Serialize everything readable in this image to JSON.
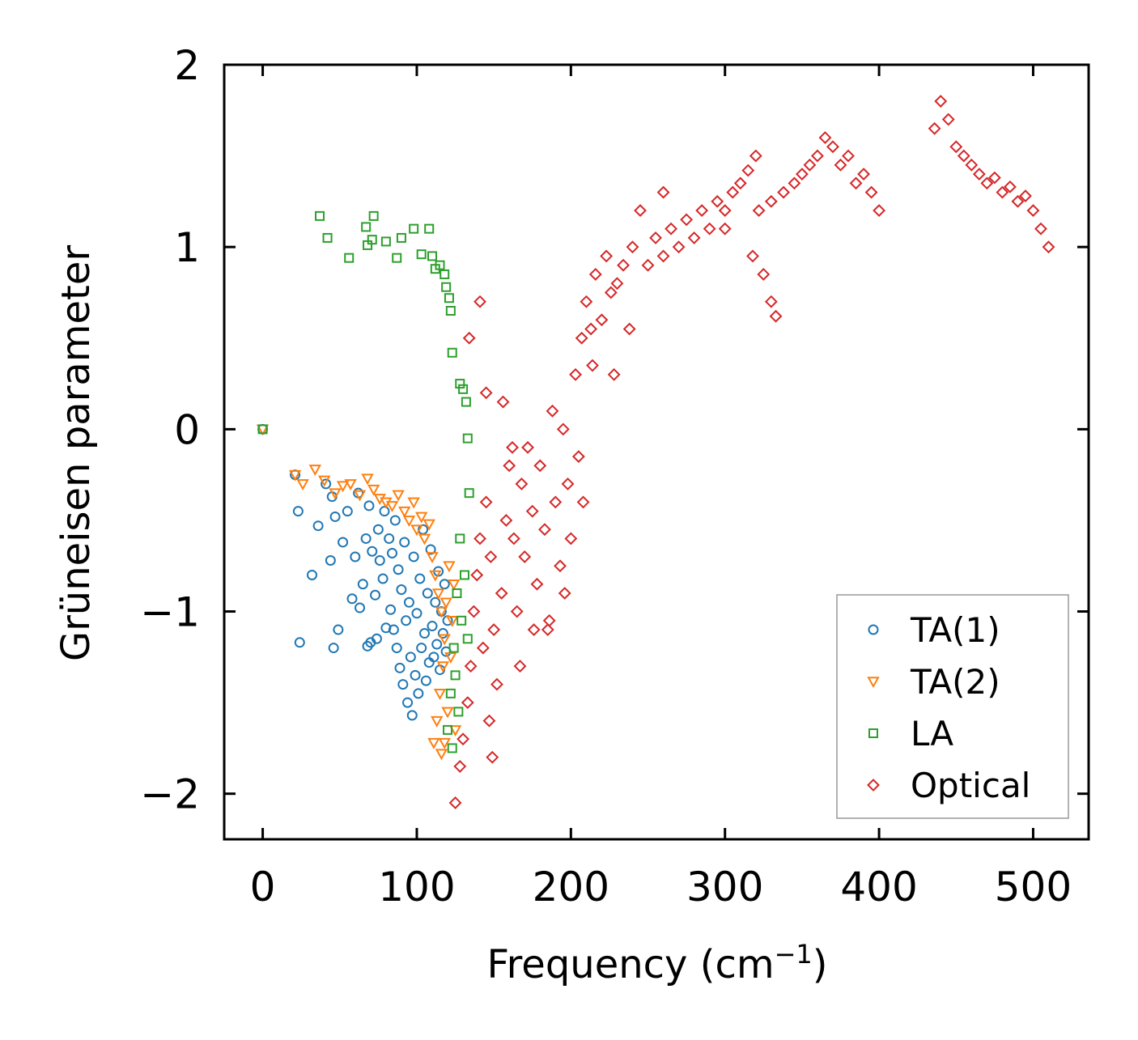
{
  "chart_data": {
    "type": "scatter",
    "title": "",
    "xlabel_main": "Frequency (cm",
    "xlabel_sup": "−1",
    "xlabel_close": ")",
    "ylabel": "Grüneisen parameter",
    "xlim": [
      -25,
      536
    ],
    "ylim": [
      -2.25,
      2.0
    ],
    "xticks": [
      0,
      100,
      200,
      300,
      400,
      500
    ],
    "xtick_labels": [
      "0",
      "100",
      "200",
      "300",
      "400",
      "500"
    ],
    "yticks": [
      -2,
      -1,
      0,
      1,
      2
    ],
    "ytick_labels": [
      "−2",
      "−1",
      "0",
      "1",
      "2"
    ],
    "grid": false,
    "legend_position": "lower-right",
    "series": [
      {
        "name": "TA(1)",
        "marker": "circle",
        "color": "#1f77b4",
        "points": [
          [
            0,
            0
          ],
          [
            23,
            -0.45
          ],
          [
            21,
            -0.25
          ],
          [
            24,
            -1.17
          ],
          [
            32,
            -0.8
          ],
          [
            36,
            -0.53
          ],
          [
            41,
            -0.3
          ],
          [
            44,
            -0.72
          ],
          [
            45,
            -0.37
          ],
          [
            46,
            -1.2
          ],
          [
            47,
            -0.48
          ],
          [
            49,
            -1.1
          ],
          [
            52,
            -0.62
          ],
          [
            55,
            -0.45
          ],
          [
            58,
            -0.93
          ],
          [
            60,
            -0.7
          ],
          [
            62,
            -0.35
          ],
          [
            63,
            -0.98
          ],
          [
            65,
            -0.85
          ],
          [
            67,
            -0.6
          ],
          [
            68,
            -1.19
          ],
          [
            69,
            -0.42
          ],
          [
            70,
            -1.17
          ],
          [
            71,
            -0.67
          ],
          [
            73,
            -0.91
          ],
          [
            74,
            -1.15
          ],
          [
            75,
            -0.55
          ],
          [
            76,
            -0.72
          ],
          [
            78,
            -0.82
          ],
          [
            79,
            -0.45
          ],
          [
            80,
            -1.09
          ],
          [
            82,
            -0.6
          ],
          [
            83,
            -0.99
          ],
          [
            84,
            -0.68
          ],
          [
            85,
            -1.1
          ],
          [
            86,
            -0.5
          ],
          [
            87,
            -1.2
          ],
          [
            88,
            -0.77
          ],
          [
            89,
            -1.31
          ],
          [
            90,
            -0.88
          ],
          [
            91,
            -1.4
          ],
          [
            92,
            -0.62
          ],
          [
            93,
            -1.05
          ],
          [
            94,
            -1.5
          ],
          [
            95,
            -0.95
          ],
          [
            96,
            -1.25
          ],
          [
            97,
            -1.57
          ],
          [
            98,
            -0.7
          ],
          [
            99,
            -1.35
          ],
          [
            100,
            -1.01
          ],
          [
            101,
            -1.45
          ],
          [
            102,
            -0.82
          ],
          [
            103,
            -1.2
          ],
          [
            104,
            -0.55
          ],
          [
            105,
            -1.12
          ],
          [
            106,
            -1.38
          ],
          [
            107,
            -0.9
          ],
          [
            108,
            -1.28
          ],
          [
            109,
            -0.66
          ],
          [
            110,
            -1.08
          ],
          [
            111,
            -1.25
          ],
          [
            112,
            -0.95
          ],
          [
            113,
            -1.18
          ],
          [
            114,
            -0.78
          ],
          [
            115,
            -1.32
          ],
          [
            116,
            -1.0
          ],
          [
            117,
            -1.12
          ],
          [
            118,
            -0.85
          ],
          [
            119,
            -1.22
          ],
          [
            120,
            -1.05
          ]
        ]
      },
      {
        "name": "TA(2)",
        "marker": "triangle-down",
        "color": "#ff7f0e",
        "points": [
          [
            0,
            0
          ],
          [
            21,
            -0.25
          ],
          [
            26,
            -0.3
          ],
          [
            34,
            -0.22
          ],
          [
            40,
            -0.28
          ],
          [
            47,
            -0.35
          ],
          [
            52,
            -0.31
          ],
          [
            57,
            -0.3
          ],
          [
            63,
            -0.36
          ],
          [
            68,
            -0.27
          ],
          [
            72,
            -0.33
          ],
          [
            76,
            -0.38
          ],
          [
            80,
            -0.4
          ],
          [
            84,
            -0.42
          ],
          [
            88,
            -0.36
          ],
          [
            92,
            -0.45
          ],
          [
            95,
            -0.5
          ],
          [
            98,
            -0.4
          ],
          [
            100,
            -0.55
          ],
          [
            103,
            -0.48
          ],
          [
            105,
            -0.6
          ],
          [
            108,
            -0.52
          ],
          [
            110,
            -0.7
          ],
          [
            111,
            -1.72
          ],
          [
            112,
            -0.8
          ],
          [
            113,
            -1.6
          ],
          [
            114,
            -0.9
          ],
          [
            115,
            -1.45
          ],
          [
            116,
            -1.0
          ],
          [
            117,
            -1.3
          ],
          [
            118,
            -1.15
          ],
          [
            119,
            -0.95
          ],
          [
            120,
            -1.55
          ],
          [
            121,
            -0.75
          ],
          [
            122,
            -1.25
          ],
          [
            123,
            -1.05
          ],
          [
            124,
            -0.85
          ],
          [
            125,
            -1.65
          ],
          [
            118,
            -1.72
          ],
          [
            116,
            -1.78
          ]
        ]
      },
      {
        "name": "LA",
        "marker": "square",
        "color": "#2ca02c",
        "points": [
          [
            0,
            0
          ],
          [
            37,
            1.17
          ],
          [
            42,
            1.05
          ],
          [
            56,
            0.94
          ],
          [
            67,
            1.11
          ],
          [
            68,
            1.01
          ],
          [
            72,
            1.17
          ],
          [
            71,
            1.04
          ],
          [
            80,
            1.03
          ],
          [
            87,
            0.94
          ],
          [
            90,
            1.05
          ],
          [
            98,
            1.1
          ],
          [
            103,
            0.96
          ],
          [
            108,
            1.1
          ],
          [
            110,
            0.95
          ],
          [
            112,
            0.88
          ],
          [
            115,
            0.9
          ],
          [
            118,
            0.85
          ],
          [
            119,
            0.78
          ],
          [
            121,
            0.72
          ],
          [
            122,
            0.65
          ],
          [
            123,
            0.42
          ],
          [
            128,
            0.25
          ],
          [
            130,
            0.22
          ],
          [
            132,
            0.15
          ],
          [
            133,
            -0.05
          ],
          [
            134,
            -0.35
          ],
          [
            128,
            -0.6
          ],
          [
            126,
            -0.9
          ],
          [
            124,
            -1.2
          ],
          [
            122,
            -1.45
          ],
          [
            120,
            -1.65
          ],
          [
            125,
            -1.35
          ],
          [
            129,
            -1.05
          ],
          [
            131,
            -0.8
          ],
          [
            133,
            -1.15
          ],
          [
            127,
            -1.55
          ],
          [
            123,
            -1.75
          ]
        ]
      },
      {
        "name": "Optical",
        "marker": "diamond",
        "color": "#d62728",
        "points": [
          [
            125,
            -2.05
          ],
          [
            128,
            -1.85
          ],
          [
            130,
            -1.7
          ],
          [
            133,
            -1.5
          ],
          [
            135,
            -1.3
          ],
          [
            137,
            -1.0
          ],
          [
            139,
            -0.8
          ],
          [
            141,
            -0.6
          ],
          [
            145,
            -0.4
          ],
          [
            148,
            -0.7
          ],
          [
            150,
            -1.1
          ],
          [
            152,
            -1.4
          ],
          [
            155,
            -0.9
          ],
          [
            158,
            -0.5
          ],
          [
            160,
            -0.2
          ],
          [
            163,
            -0.6
          ],
          [
            165,
            -1.0
          ],
          [
            168,
            -0.3
          ],
          [
            170,
            -0.7
          ],
          [
            172,
            -0.1
          ],
          [
            175,
            -0.45
          ],
          [
            178,
            -0.85
          ],
          [
            180,
            -0.2
          ],
          [
            183,
            -0.55
          ],
          [
            185,
            -1.1
          ],
          [
            188,
            0.1
          ],
          [
            190,
            -0.4
          ],
          [
            193,
            -0.75
          ],
          [
            195,
            0.0
          ],
          [
            198,
            -0.3
          ],
          [
            200,
            -0.6
          ],
          [
            203,
            0.3
          ],
          [
            205,
            -0.15
          ],
          [
            207,
            0.5
          ],
          [
            210,
            0.7
          ],
          [
            213,
            0.55
          ],
          [
            216,
            0.85
          ],
          [
            220,
            0.6
          ],
          [
            223,
            0.95
          ],
          [
            226,
            0.75
          ],
          [
            230,
            0.8
          ],
          [
            234,
            0.9
          ],
          [
            240,
            1.0
          ],
          [
            245,
            1.2
          ],
          [
            250,
            0.9
          ],
          [
            255,
            1.05
          ],
          [
            260,
            0.95
          ],
          [
            265,
            1.1
          ],
          [
            270,
            1.0
          ],
          [
            275,
            1.15
          ],
          [
            280,
            1.05
          ],
          [
            285,
            1.2
          ],
          [
            290,
            1.1
          ],
          [
            295,
            1.25
          ],
          [
            300,
            1.2
          ],
          [
            305,
            1.3
          ],
          [
            310,
            1.35
          ],
          [
            315,
            1.42
          ],
          [
            320,
            1.5
          ],
          [
            322,
            1.2
          ],
          [
            318,
            0.95
          ],
          [
            325,
            0.85
          ],
          [
            330,
            0.7
          ],
          [
            333,
            0.62
          ],
          [
            338,
            1.3
          ],
          [
            345,
            1.35
          ],
          [
            350,
            1.4
          ],
          [
            355,
            1.45
          ],
          [
            360,
            1.5
          ],
          [
            365,
            1.6
          ],
          [
            370,
            1.55
          ],
          [
            375,
            1.45
          ],
          [
            380,
            1.5
          ],
          [
            385,
            1.35
          ],
          [
            390,
            1.4
          ],
          [
            395,
            1.3
          ],
          [
            400,
            1.2
          ],
          [
            436,
            1.65
          ],
          [
            440,
            1.8
          ],
          [
            445,
            1.7
          ],
          [
            450,
            1.55
          ],
          [
            455,
            1.5
          ],
          [
            460,
            1.45
          ],
          [
            465,
            1.4
          ],
          [
            470,
            1.35
          ],
          [
            475,
            1.38
          ],
          [
            480,
            1.3
          ],
          [
            485,
            1.33
          ],
          [
            490,
            1.25
          ],
          [
            495,
            1.28
          ],
          [
            500,
            1.2
          ],
          [
            505,
            1.1
          ],
          [
            510,
            1.0
          ],
          [
            141,
            0.7
          ],
          [
            134,
            0.5
          ],
          [
            145,
            0.2
          ],
          [
            156,
            0.15
          ],
          [
            162,
            -0.1
          ],
          [
            147,
            -1.6
          ],
          [
            149,
            -1.8
          ],
          [
            143,
            -1.2
          ],
          [
            167,
            -1.3
          ],
          [
            176,
            -1.1
          ],
          [
            186,
            -1.05
          ],
          [
            196,
            -0.9
          ],
          [
            208,
            -0.4
          ],
          [
            214,
            0.35
          ],
          [
            228,
            0.3
          ],
          [
            238,
            0.55
          ],
          [
            260,
            1.3
          ],
          [
            300,
            1.1
          ],
          [
            330,
            1.25
          ]
        ]
      }
    ]
  }
}
